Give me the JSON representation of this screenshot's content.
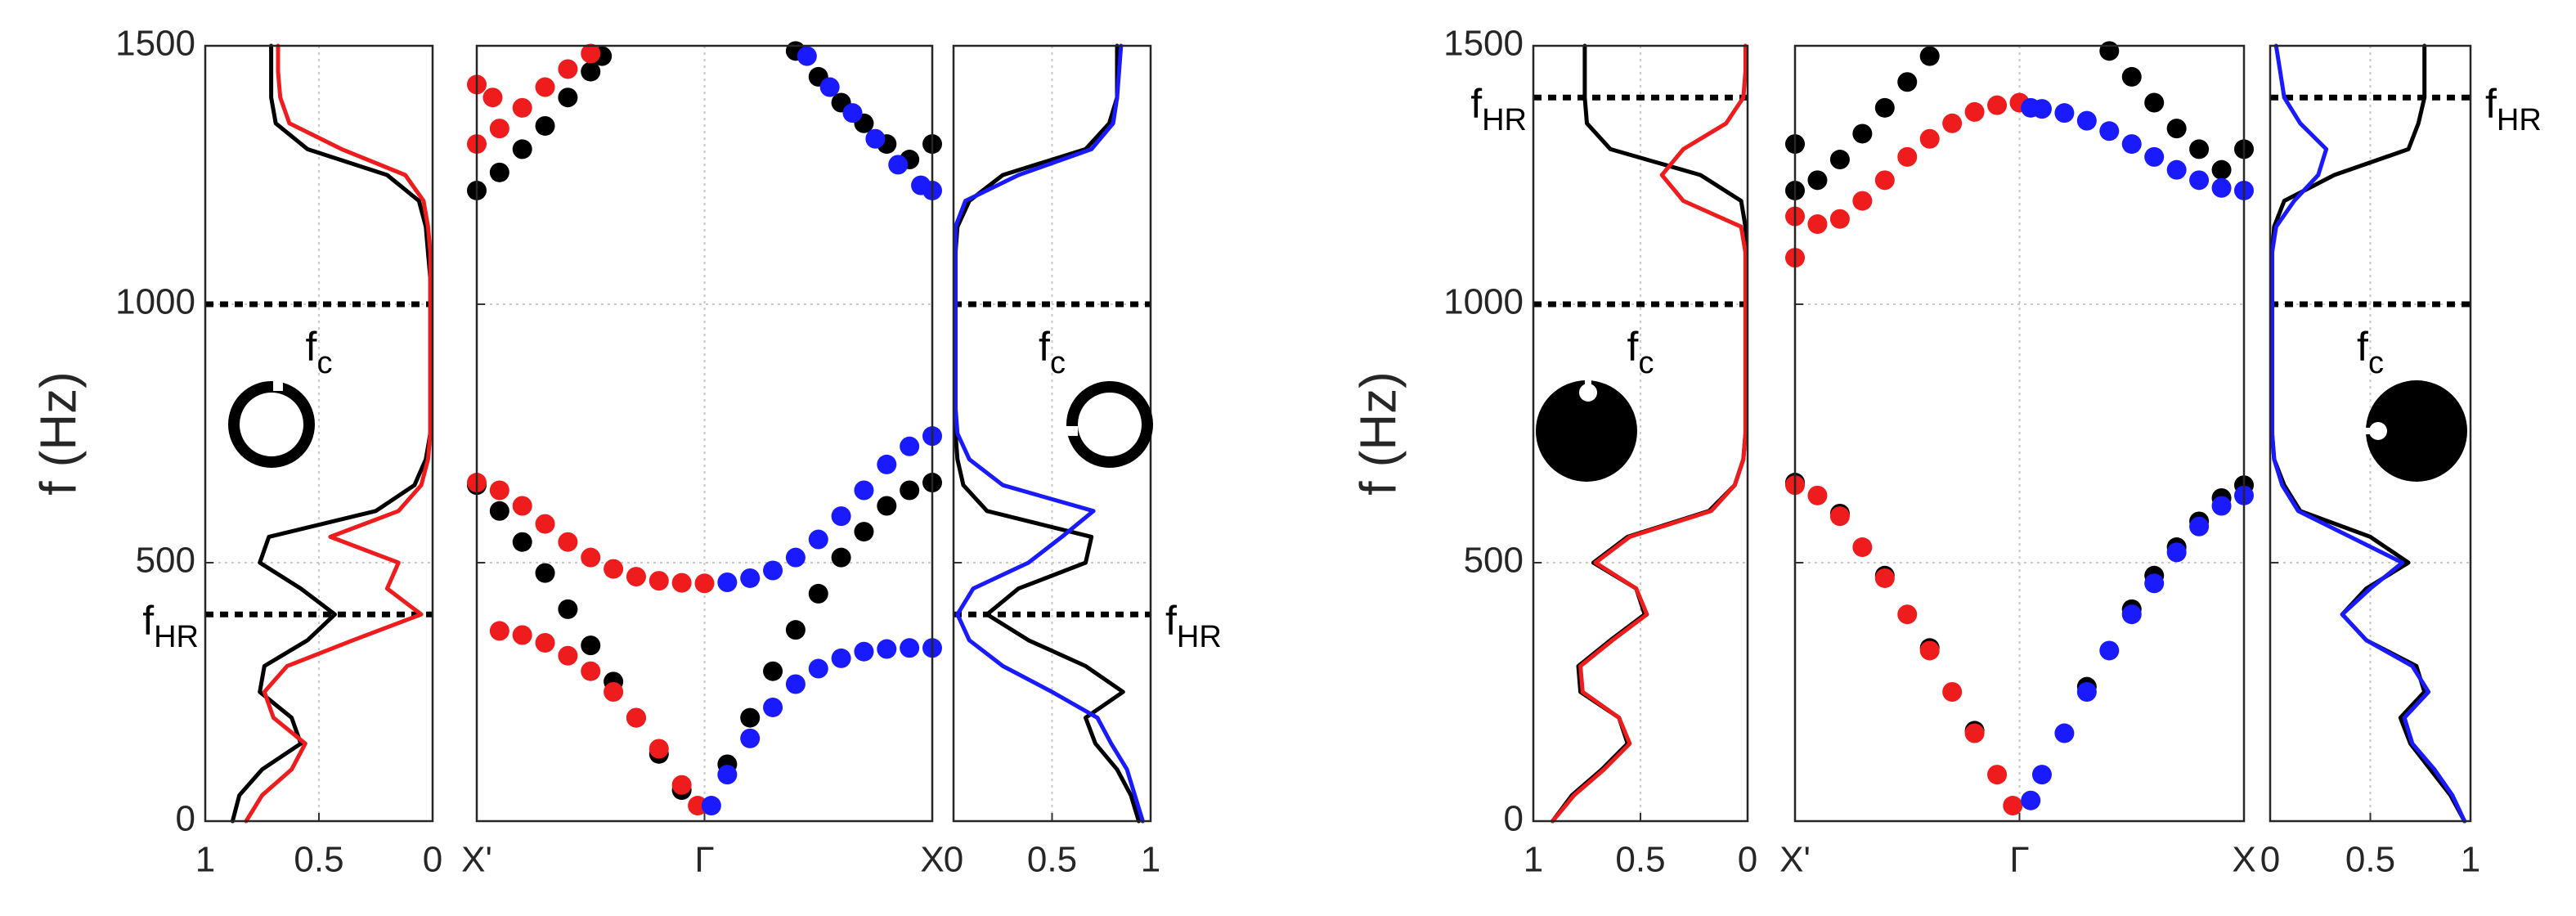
{
  "chart_data": [
    {
      "type": "line",
      "ylabel": "f (Hz)",
      "xlim": [
        1,
        0
      ],
      "xticks": [
        1,
        0.5,
        0
      ],
      "ylim": [
        0,
        1500
      ],
      "yticks": [
        0,
        500,
        1000,
        1500
      ],
      "ytick_labels": true,
      "grid": true,
      "y": [
        0,
        50,
        100,
        150,
        200,
        250,
        300,
        350,
        400,
        450,
        500,
        550,
        600,
        650,
        700,
        750,
        800,
        850,
        900,
        950,
        1000,
        1050,
        1100,
        1150,
        1200,
        1250,
        1300,
        1350,
        1400,
        1450,
        1500
      ],
      "series": [
        {
          "color": "#000000",
          "values": [
            0.88,
            0.85,
            0.75,
            0.58,
            0.62,
            0.76,
            0.74,
            0.55,
            0.43,
            0.58,
            0.76,
            0.72,
            0.25,
            0.08,
            0.03,
            0.01,
            0.01,
            0.01,
            0.01,
            0.01,
            0.01,
            0.01,
            0.02,
            0.03,
            0.06,
            0.2,
            0.55,
            0.69,
            0.71,
            0.71,
            0.71
          ]
        },
        {
          "color": "#ee1c1c",
          "values": [
            0.82,
            0.75,
            0.62,
            0.56,
            0.7,
            0.74,
            0.64,
            0.35,
            0.05,
            0.2,
            0.15,
            0.45,
            0.15,
            0.05,
            0.02,
            0.01,
            0.01,
            0.01,
            0.01,
            0.01,
            0.01,
            0.01,
            0.01,
            0.02,
            0.04,
            0.12,
            0.4,
            0.63,
            0.67,
            0.68,
            0.68
          ]
        }
      ],
      "hlines": [
        {
          "value": 1000,
          "text": "f",
          "sub": "c",
          "label": "inside"
        },
        {
          "value": 400,
          "text": "f",
          "sub": "HR",
          "label": "outside"
        }
      ]
    },
    {
      "type": "scatter",
      "xlim": [
        -1,
        1
      ],
      "xticks": [
        {
          "value": -1,
          "label": "X'"
        },
        {
          "value": 0,
          "label": "Γ"
        },
        {
          "value": 1,
          "label": "X"
        }
      ],
      "ylim": [
        0,
        1500
      ],
      "yticks": [
        0,
        500,
        1000,
        1500
      ],
      "ytick_labels": false,
      "grid": true,
      "series": [
        {
          "color": "#000000",
          "x": [
            -1,
            -0.9,
            -0.8,
            -0.7,
            -0.6,
            -0.5,
            -0.4,
            -0.3,
            -0.2,
            -0.1
          ],
          "values": [
            650,
            600,
            540,
            480,
            410,
            340,
            270,
            200,
            130,
            60
          ]
        },
        {
          "color": "#000000",
          "x": [
            0.1,
            0.2,
            0.3,
            0.4,
            0.5,
            0.6,
            0.7,
            0.8,
            0.9,
            1
          ],
          "values": [
            110,
            200,
            290,
            370,
            440,
            510,
            560,
            610,
            640,
            655
          ]
        },
        {
          "color": "#000000",
          "x": [
            -1,
            -0.9,
            -0.8,
            -0.7,
            -0.6,
            -0.5,
            -0.45
          ],
          "values": [
            1220,
            1255,
            1300,
            1345,
            1400,
            1450,
            1480
          ]
        },
        {
          "color": "#000000",
          "x": [
            0.4,
            0.5,
            0.6,
            0.7,
            0.8,
            0.9,
            1
          ],
          "values": [
            1490,
            1440,
            1390,
            1350,
            1310,
            1280,
            1310
          ]
        },
        {
          "color": "#ee1c1c",
          "x": [
            -0.9,
            -0.8,
            -0.7,
            -0.6,
            -0.5,
            -0.4,
            -0.3,
            -0.2,
            -0.1,
            -0.03
          ],
          "values": [
            368,
            360,
            345,
            320,
            290,
            250,
            200,
            140,
            70,
            30
          ]
        },
        {
          "color": "#ee1c1c",
          "x": [
            -1,
            -0.9,
            -0.8,
            -0.7,
            -0.6,
            -0.5,
            -0.4,
            -0.3,
            -0.2,
            -0.1,
            0
          ],
          "values": [
            655,
            640,
            610,
            575,
            540,
            510,
            488,
            473,
            465,
            461,
            460
          ]
        },
        {
          "color": "#ee1c1c",
          "x": [
            -1,
            -0.93,
            -1,
            -0.9,
            -0.8,
            -0.7,
            -0.6,
            -0.5
          ],
          "values": [
            1425,
            1400,
            1310,
            1340,
            1380,
            1420,
            1455,
            1485
          ]
        },
        {
          "color": "#1a1aff",
          "x": [
            0.1,
            0.2,
            0.3,
            0.4,
            0.5,
            0.6,
            0.7,
            0.8,
            0.9,
            1
          ],
          "values": [
            462,
            470,
            485,
            510,
            545,
            590,
            640,
            690,
            725,
            745
          ]
        },
        {
          "color": "#1a1aff",
          "x": [
            0.03,
            0.1,
            0.2,
            0.3,
            0.4,
            0.5,
            0.6,
            0.7,
            0.8,
            0.9,
            1
          ],
          "values": [
            30,
            90,
            160,
            220,
            265,
            295,
            315,
            328,
            333,
            335,
            335
          ]
        },
        {
          "color": "#1a1aff",
          "x": [
            0.45,
            0.55,
            0.65,
            0.75,
            0.85,
            0.95,
            1
          ],
          "values": [
            1480,
            1420,
            1370,
            1320,
            1270,
            1230,
            1220
          ]
        }
      ]
    },
    {
      "type": "line",
      "xlim": [
        0,
        1
      ],
      "xticks": [
        0,
        0.5,
        1
      ],
      "ylim": [
        0,
        1500
      ],
      "yticks": [
        0,
        500,
        1000,
        1500
      ],
      "ytick_labels": false,
      "grid": true,
      "y": [
        0,
        50,
        100,
        150,
        200,
        250,
        300,
        350,
        400,
        450,
        500,
        550,
        600,
        650,
        700,
        750,
        800,
        850,
        900,
        950,
        1000,
        1050,
        1100,
        1150,
        1200,
        1250,
        1300,
        1350,
        1400,
        1450,
        1500
      ],
      "series": [
        {
          "color": "#000000",
          "values": [
            0.94,
            0.9,
            0.83,
            0.72,
            0.67,
            0.86,
            0.67,
            0.38,
            0.17,
            0.33,
            0.67,
            0.7,
            0.17,
            0.05,
            0.02,
            0.01,
            0.01,
            0.01,
            0.01,
            0.01,
            0.01,
            0.01,
            0.01,
            0.02,
            0.08,
            0.25,
            0.67,
            0.79,
            0.83,
            0.83,
            0.83
          ]
        },
        {
          "color": "#1a1aff",
          "values": [
            0.96,
            0.92,
            0.88,
            0.8,
            0.73,
            0.5,
            0.25,
            0.08,
            0.02,
            0.1,
            0.38,
            0.55,
            0.71,
            0.25,
            0.08,
            0.02,
            0.01,
            0.01,
            0.01,
            0.01,
            0.01,
            0.01,
            0.01,
            0.01,
            0.06,
            0.33,
            0.7,
            0.81,
            0.83,
            0.84,
            0.85
          ]
        }
      ],
      "hlines": [
        {
          "value": 1000,
          "text": "f",
          "sub": "c",
          "label": "inside"
        },
        {
          "value": 400,
          "text": "f",
          "sub": "HR",
          "label": "outside"
        }
      ]
    },
    {
      "type": "line",
      "ylabel": "f (Hz)",
      "xlim": [
        1,
        0
      ],
      "xticks": [
        1,
        0.5,
        0
      ],
      "ylim": [
        0,
        1500
      ],
      "yticks": [
        0,
        500,
        1000,
        1500
      ],
      "ytick_labels": true,
      "grid": true,
      "y": [
        0,
        50,
        100,
        150,
        200,
        250,
        300,
        350,
        400,
        450,
        500,
        550,
        600,
        650,
        700,
        750,
        800,
        850,
        900,
        950,
        1000,
        1050,
        1100,
        1150,
        1200,
        1250,
        1300,
        1350,
        1400,
        1450,
        1500
      ],
      "series": [
        {
          "color": "#000000",
          "values": [
            0.91,
            0.82,
            0.68,
            0.56,
            0.6,
            0.78,
            0.79,
            0.64,
            0.48,
            0.52,
            0.72,
            0.56,
            0.18,
            0.06,
            0.02,
            0.01,
            0.01,
            0.01,
            0.01,
            0.01,
            0.01,
            0.01,
            0.01,
            0.01,
            0.03,
            0.22,
            0.64,
            0.75,
            0.76,
            0.76,
            0.76
          ]
        },
        {
          "color": "#ee1c1c",
          "values": [
            0.91,
            0.81,
            0.67,
            0.55,
            0.6,
            0.77,
            0.78,
            0.63,
            0.47,
            0.52,
            0.71,
            0.55,
            0.17,
            0.06,
            0.02,
            0.01,
            0.01,
            0.01,
            0.01,
            0.01,
            0.01,
            0.01,
            0.01,
            0.03,
            0.3,
            0.4,
            0.3,
            0.1,
            0.02,
            0.01,
            0.01
          ]
        }
      ],
      "hlines": [
        {
          "value": 1000,
          "text": "f",
          "sub": "c",
          "label": "inside"
        },
        {
          "value": 1400,
          "text": "f",
          "sub": "HR",
          "label": "outside"
        }
      ]
    },
    {
      "type": "scatter",
      "xlim": [
        -1,
        1
      ],
      "xticks": [
        {
          "value": -1,
          "label": "X'"
        },
        {
          "value": 0,
          "label": "Γ"
        },
        {
          "value": 1,
          "label": "X"
        }
      ],
      "ylim": [
        0,
        1500
      ],
      "yticks": [
        0,
        500,
        1000,
        1500
      ],
      "ytick_labels": false,
      "grid": true,
      "series": [
        {
          "color": "#000000",
          "x": [
            -1,
            -0.8,
            -0.6,
            -0.4,
            -0.2,
            0.3,
            0.5,
            0.6,
            0.7,
            0.8,
            0.9,
            1
          ],
          "values": [
            655,
            595,
            475,
            335,
            175,
            260,
            410,
            475,
            530,
            580,
            625,
            650
          ]
        },
        {
          "color": "#000000",
          "x": [
            -1,
            -1,
            -0.9,
            -0.8,
            -0.7,
            -0.6,
            -0.5,
            -0.4
          ],
          "values": [
            1310,
            1220,
            1240,
            1280,
            1330,
            1380,
            1430,
            1480
          ]
        },
        {
          "color": "#000000",
          "x": [
            0.4,
            0.5,
            0.6,
            0.7,
            0.8,
            0.9,
            1
          ],
          "values": [
            1490,
            1440,
            1390,
            1340,
            1300,
            1260,
            1300
          ]
        },
        {
          "color": "#ee1c1c",
          "x": [
            -1,
            -0.9,
            -0.8,
            -0.7,
            -0.6,
            -0.5,
            -0.4,
            -0.3,
            -0.2,
            -0.1,
            -0.03
          ],
          "values": [
            650,
            630,
            590,
            530,
            470,
            400,
            330,
            250,
            170,
            90,
            30
          ]
        },
        {
          "color": "#ee1c1c",
          "x": [
            -1,
            -1,
            -0.9,
            -0.8,
            -0.7,
            -0.6,
            -0.5,
            -0.4,
            -0.3,
            -0.2,
            -0.1,
            0
          ],
          "values": [
            1090,
            1170,
            1155,
            1165,
            1200,
            1240,
            1285,
            1320,
            1350,
            1372,
            1385,
            1390
          ]
        },
        {
          "color": "#1a1aff",
          "x": [
            0.05,
            0.1,
            0.2,
            0.3,
            0.4,
            0.5,
            0.6,
            0.7,
            0.8,
            0.9,
            1
          ],
          "values": [
            40,
            90,
            170,
            250,
            330,
            400,
            460,
            520,
            570,
            610,
            630
          ]
        },
        {
          "color": "#1a1aff",
          "x": [
            0.05,
            0.1,
            0.2,
            0.3,
            0.4,
            0.5,
            0.6,
            0.7,
            0.8,
            0.9,
            1
          ],
          "values": [
            1380,
            1378,
            1370,
            1355,
            1335,
            1310,
            1285,
            1260,
            1240,
            1225,
            1220
          ]
        }
      ]
    },
    {
      "type": "line",
      "xlim": [
        0,
        1
      ],
      "xticks": [
        0,
        0.5,
        1
      ],
      "ylim": [
        0,
        1500
      ],
      "yticks": [
        0,
        500,
        1000,
        1500
      ],
      "ytick_labels": false,
      "grid": true,
      "y": [
        0,
        50,
        100,
        150,
        200,
        250,
        300,
        350,
        400,
        450,
        500,
        550,
        600,
        650,
        700,
        750,
        800,
        850,
        900,
        950,
        1000,
        1050,
        1100,
        1150,
        1200,
        1250,
        1300,
        1350,
        1400,
        1450,
        1500
      ],
      "series": [
        {
          "color": "#000000",
          "values": [
            0.97,
            0.9,
            0.8,
            0.7,
            0.65,
            0.77,
            0.73,
            0.48,
            0.36,
            0.48,
            0.69,
            0.5,
            0.15,
            0.07,
            0.02,
            0.01,
            0.01,
            0.01,
            0.01,
            0.01,
            0.01,
            0.01,
            0.01,
            0.02,
            0.07,
            0.32,
            0.69,
            0.74,
            0.77,
            0.77,
            0.77
          ]
        },
        {
          "color": "#1a1aff",
          "values": [
            0.97,
            0.91,
            0.82,
            0.71,
            0.67,
            0.79,
            0.71,
            0.48,
            0.36,
            0.5,
            0.66,
            0.4,
            0.14,
            0.06,
            0.02,
            0.01,
            0.01,
            0.01,
            0.01,
            0.01,
            0.01,
            0.01,
            0.01,
            0.03,
            0.12,
            0.24,
            0.28,
            0.15,
            0.07,
            0.05,
            0.03
          ]
        }
      ],
      "hlines": [
        {
          "value": 1000,
          "text": "f",
          "sub": "c",
          "label": "inside"
        },
        {
          "value": 1400,
          "text": "f",
          "sub": "HR",
          "label": "outside"
        }
      ]
    }
  ]
}
